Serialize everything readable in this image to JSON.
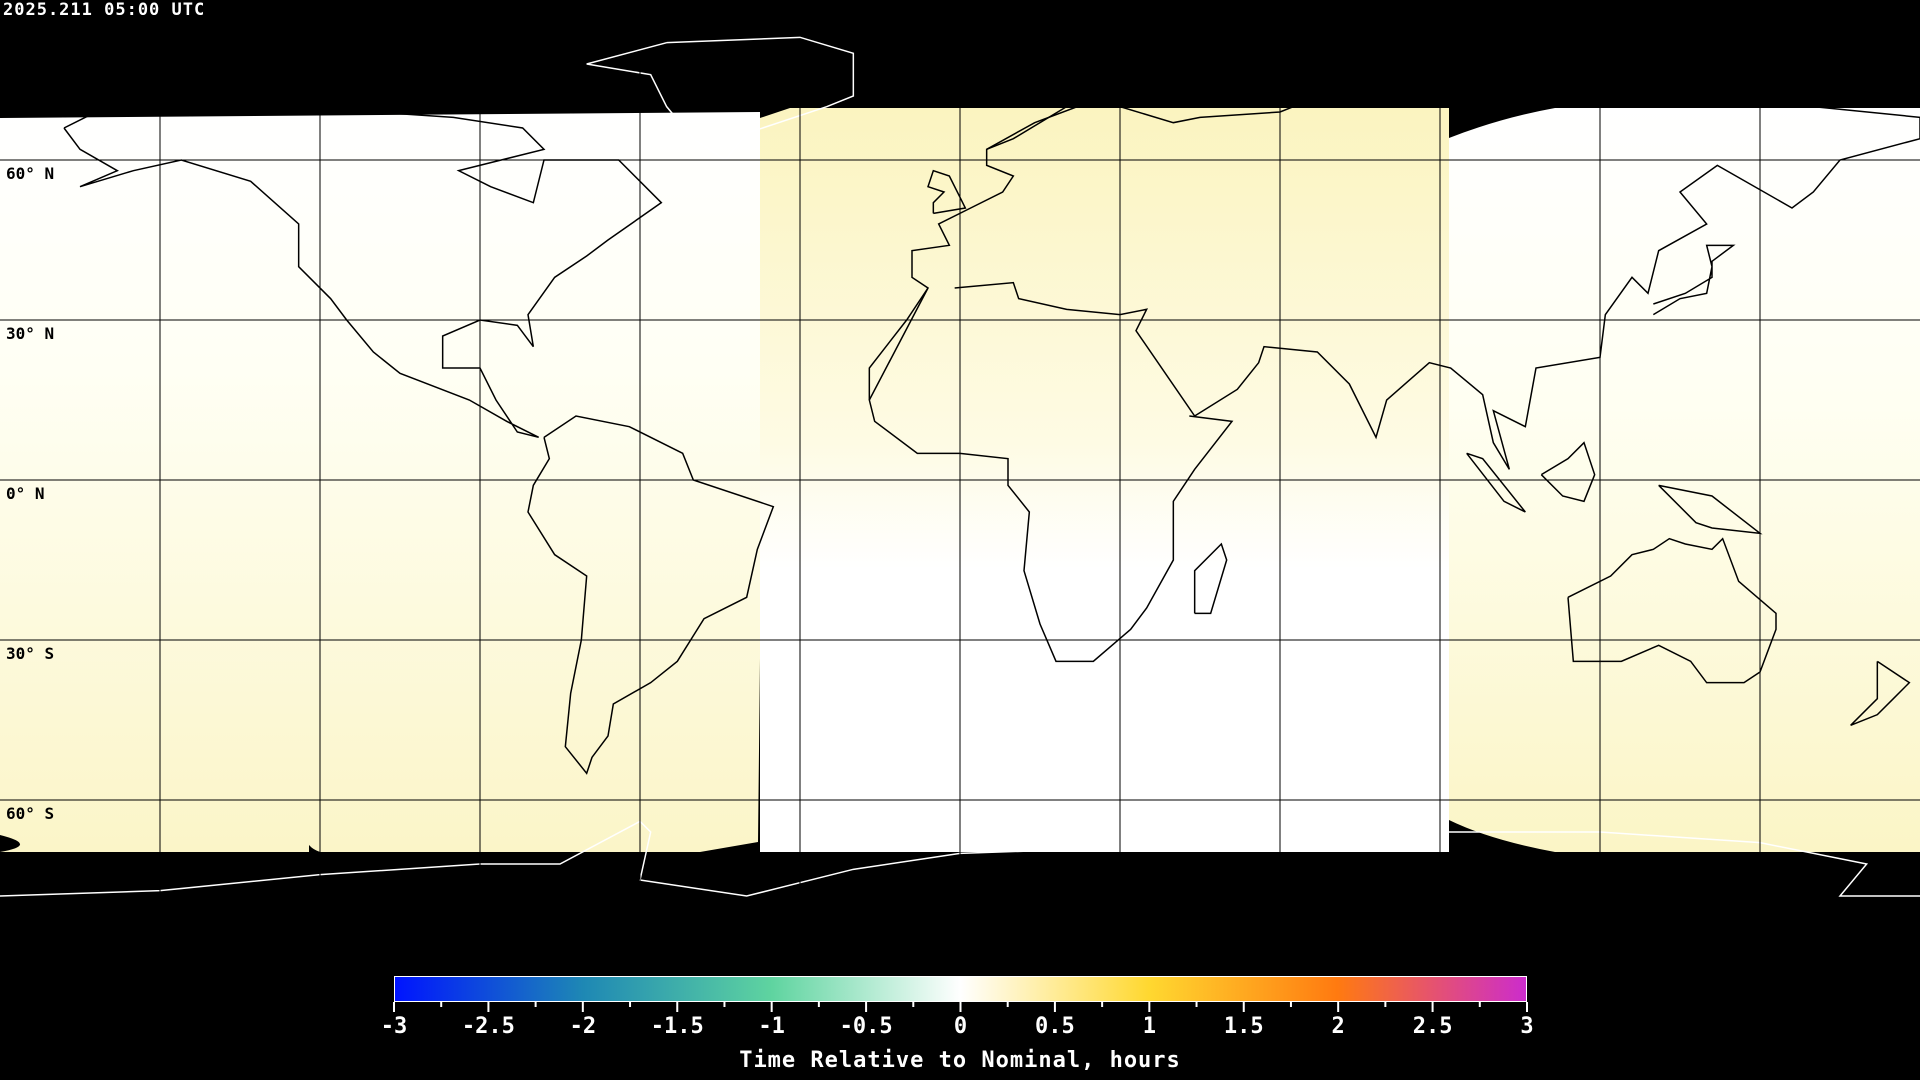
{
  "header": {
    "timestamp": "2025.211 05:00 UTC"
  },
  "map": {
    "projection": "equirectangular",
    "lat_labels": [
      "60° N",
      "30° N",
      "0° N",
      "30° S",
      "60° S"
    ],
    "night_color": "#000000",
    "coastline_color_day": "#000000",
    "coastline_color_night": "#ffffff",
    "gridline_color": "#000000"
  },
  "colorbar": {
    "title": "Time Relative to Nominal, hours",
    "min": -3,
    "max": 3,
    "tick_labels": [
      "-3",
      "-2.5",
      "-2",
      "-1.5",
      "-1",
      "-0.5",
      "0",
      "0.5",
      "1",
      "1.5",
      "2",
      "2.5",
      "3"
    ],
    "colors": [
      "#0014ff",
      "#1e88b4",
      "#5fd4a0",
      "#ffffff",
      "#ffd830",
      "#ff7a10",
      "#cc2ccc"
    ]
  }
}
